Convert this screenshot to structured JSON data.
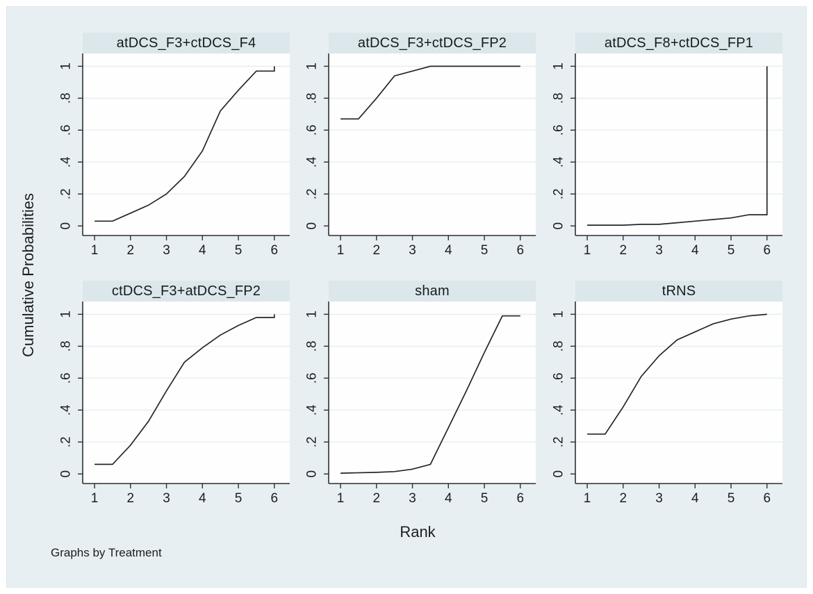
{
  "figure": {
    "note": "Graphs by Treatment"
  },
  "colors": {
    "figure_bg": "#e8eff2",
    "title_bar_bg": "#dbe7eb",
    "plot_bg": "#fefefe",
    "grid": "#e3ebee",
    "axis": "#2b2f30",
    "line": "#232627",
    "text": "#1a1e1f"
  },
  "axes": {
    "xlabel": "Rank",
    "ylabel": "Cumulative Probabilities",
    "xticks": [
      1,
      2,
      3,
      4,
      5,
      6
    ],
    "yticks": [
      {
        "v": 0,
        "label": "0"
      },
      {
        "v": 0.2,
        "label": ".2"
      },
      {
        "v": 0.4,
        "label": ".4"
      },
      {
        "v": 0.6,
        "label": ".6"
      },
      {
        "v": 0.8,
        "label": ".8"
      },
      {
        "v": 1,
        "label": "1"
      }
    ],
    "xrange": [
      0.67,
      6.43
    ],
    "yrange": [
      -0.06,
      1.08
    ],
    "grid": "horizontal gridlines at .2 .4 .6 .8 1"
  },
  "chart_data": {
    "type": "line",
    "layout": "2x3 small multiples, graphs by Treatment",
    "title": "",
    "xlabel": "Rank",
    "ylabel": "Cumulative Probabilities",
    "panels": [
      {
        "title": "atDCS_F3+ctDCS_F4",
        "points": [
          [
            1,
            0.03
          ],
          [
            1.5,
            0.03
          ],
          [
            2,
            0.08
          ],
          [
            2.5,
            0.13
          ],
          [
            3,
            0.2
          ],
          [
            3.5,
            0.31
          ],
          [
            4,
            0.47
          ],
          [
            4.5,
            0.72
          ],
          [
            5,
            0.85
          ],
          [
            5.5,
            0.97
          ],
          [
            6,
            0.97
          ],
          [
            6,
            1.0
          ]
        ]
      },
      {
        "title": "atDCS_F3+ctDCS_FP2",
        "points": [
          [
            1,
            0.67
          ],
          [
            1.5,
            0.67
          ],
          [
            2,
            0.8
          ],
          [
            2.5,
            0.94
          ],
          [
            3,
            0.97
          ],
          [
            3.5,
            1.0
          ],
          [
            6,
            1.0
          ]
        ]
      },
      {
        "title": "atDCS_F8+ctDCS_FP1",
        "points": [
          [
            1,
            0.005
          ],
          [
            2,
            0.005
          ],
          [
            2.5,
            0.01
          ],
          [
            3,
            0.01
          ],
          [
            3.5,
            0.02
          ],
          [
            4,
            0.03
          ],
          [
            4.5,
            0.04
          ],
          [
            5,
            0.05
          ],
          [
            5.5,
            0.07
          ],
          [
            6,
            0.07
          ],
          [
            6,
            1.0
          ]
        ]
      },
      {
        "title": "ctDCS_F3+atDCS_FP2",
        "points": [
          [
            1,
            0.06
          ],
          [
            1.5,
            0.06
          ],
          [
            2,
            0.18
          ],
          [
            2.5,
            0.33
          ],
          [
            3,
            0.52
          ],
          [
            3.5,
            0.7
          ],
          [
            4,
            0.79
          ],
          [
            4.5,
            0.87
          ],
          [
            5,
            0.93
          ],
          [
            5.5,
            0.98
          ],
          [
            6,
            0.98
          ],
          [
            6,
            1.0
          ]
        ]
      },
      {
        "title": "sham",
        "points": [
          [
            1,
            0.005
          ],
          [
            2,
            0.01
          ],
          [
            2.5,
            0.015
          ],
          [
            3,
            0.03
          ],
          [
            3.5,
            0.06
          ],
          [
            4,
            0.29
          ],
          [
            4.5,
            0.52
          ],
          [
            5,
            0.76
          ],
          [
            5.5,
            0.99
          ],
          [
            6,
            0.99
          ]
        ]
      },
      {
        "title": "tRNS",
        "points": [
          [
            1,
            0.25
          ],
          [
            1.5,
            0.25
          ],
          [
            2,
            0.42
          ],
          [
            2.5,
            0.61
          ],
          [
            3,
            0.74
          ],
          [
            3.5,
            0.84
          ],
          [
            4,
            0.89
          ],
          [
            4.5,
            0.94
          ],
          [
            5,
            0.97
          ],
          [
            5.5,
            0.99
          ],
          [
            6,
            1.0
          ]
        ]
      }
    ]
  }
}
